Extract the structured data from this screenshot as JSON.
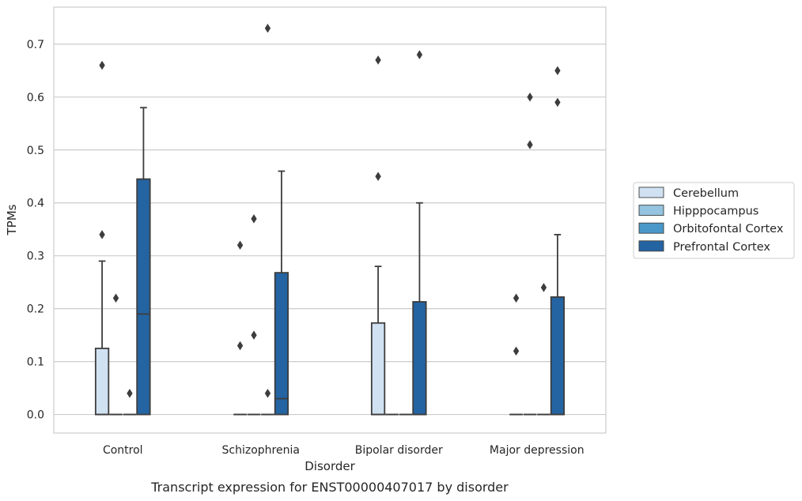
{
  "chart_data": {
    "type": "box",
    "caption": "Transcript expression for ENST00000407017 by disorder",
    "xlabel": "Disorder",
    "ylabel": "TPMs",
    "ylim": [
      -0.035,
      0.77
    ],
    "yticks": [
      0.0,
      0.1,
      0.2,
      0.3,
      0.4,
      0.5,
      0.6,
      0.7
    ],
    "ytick_labels": [
      "0.0",
      "0.1",
      "0.2",
      "0.3",
      "0.4",
      "0.5",
      "0.6",
      "0.7"
    ],
    "grid": true,
    "legend_placement": "right",
    "categories": [
      "Control",
      "Schizophrenia",
      "Bipolar disorder",
      "Major depression"
    ],
    "series": [
      {
        "name": "Cerebellum",
        "color": "#d0e1f2",
        "boxes": [
          {
            "q1": 0.0,
            "median": 0.0,
            "q3": 0.125,
            "whisker_low": 0.0,
            "whisker_high": 0.29,
            "outliers": [
              0.34,
              0.66
            ]
          },
          {
            "q1": 0.0,
            "median": 0.0,
            "q3": 0.0,
            "whisker_low": 0.0,
            "whisker_high": 0.0,
            "outliers": [
              0.13,
              0.32
            ]
          },
          {
            "q1": 0.0,
            "median": 0.0,
            "q3": 0.173,
            "whisker_low": 0.0,
            "whisker_high": 0.28,
            "outliers": [
              0.45,
              0.67
            ]
          },
          {
            "q1": 0.0,
            "median": 0.0,
            "q3": 0.0,
            "whisker_low": 0.0,
            "whisker_high": 0.0,
            "outliers": [
              0.12,
              0.22
            ]
          }
        ]
      },
      {
        "name": "Hipppocampus",
        "color": "#94c4df",
        "boxes": [
          {
            "q1": 0.0,
            "median": 0.0,
            "q3": 0.0,
            "whisker_low": 0.0,
            "whisker_high": 0.0,
            "outliers": [
              0.22
            ]
          },
          {
            "q1": 0.0,
            "median": 0.0,
            "q3": 0.0,
            "whisker_low": 0.0,
            "whisker_high": 0.0,
            "outliers": [
              0.15,
              0.37
            ]
          },
          {
            "q1": 0.0,
            "median": 0.0,
            "q3": 0.0,
            "whisker_low": 0.0,
            "whisker_high": 0.0,
            "outliers": []
          },
          {
            "q1": 0.0,
            "median": 0.0,
            "q3": 0.0,
            "whisker_low": 0.0,
            "whisker_high": 0.0,
            "outliers": [
              0.51,
              0.6
            ]
          }
        ]
      },
      {
        "name": "Orbitofontal Cortex",
        "color": "#4a98c9",
        "boxes": [
          {
            "q1": 0.0,
            "median": 0.0,
            "q3": 0.0,
            "whisker_low": 0.0,
            "whisker_high": 0.0,
            "outliers": [
              0.04
            ]
          },
          {
            "q1": 0.0,
            "median": 0.0,
            "q3": 0.0,
            "whisker_low": 0.0,
            "whisker_high": 0.0,
            "outliers": [
              0.04,
              0.73
            ]
          },
          {
            "q1": 0.0,
            "median": 0.0,
            "q3": 0.0,
            "whisker_low": 0.0,
            "whisker_high": 0.0,
            "outliers": []
          },
          {
            "q1": 0.0,
            "median": 0.0,
            "q3": 0.0,
            "whisker_low": 0.0,
            "whisker_high": 0.0,
            "outliers": [
              0.24
            ]
          }
        ]
      },
      {
        "name": "Prefrontal Cortex",
        "color": "#2464a2",
        "boxes": [
          {
            "q1": 0.0,
            "median": 0.19,
            "q3": 0.445,
            "whisker_low": 0.0,
            "whisker_high": 0.58,
            "outliers": []
          },
          {
            "q1": 0.0,
            "median": 0.03,
            "q3": 0.268,
            "whisker_low": 0.0,
            "whisker_high": 0.46,
            "outliers": []
          },
          {
            "q1": 0.0,
            "median": 0.0,
            "q3": 0.213,
            "whisker_low": 0.0,
            "whisker_high": 0.4,
            "outliers": [
              0.68
            ]
          },
          {
            "q1": 0.0,
            "median": 0.0,
            "q3": 0.222,
            "whisker_low": 0.0,
            "whisker_high": 0.34,
            "outliers": [
              0.59,
              0.65
            ]
          }
        ]
      }
    ]
  }
}
